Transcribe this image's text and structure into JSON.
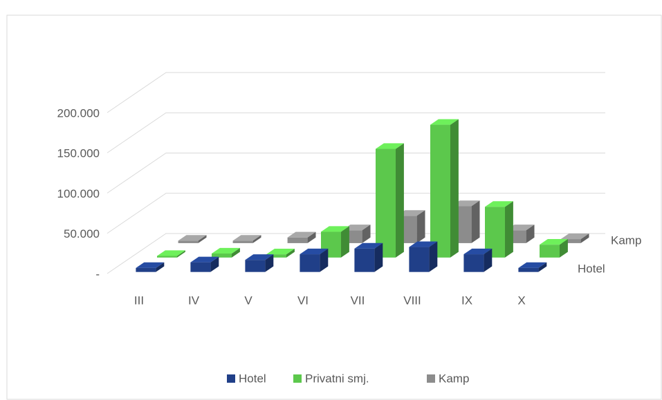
{
  "chart_data": {
    "type": "bar3d",
    "categories": [
      "III",
      "IV",
      "V",
      "VI",
      "VII",
      "VIII",
      "IX",
      "X"
    ],
    "series": [
      {
        "name": "Hotel",
        "color": "#203f88",
        "values": [
          5000,
          12000,
          15000,
          22000,
          29000,
          31000,
          22000,
          5000
        ]
      },
      {
        "name": "Privatni smj.",
        "color": "#5cc84c",
        "values": [
          2000,
          5000,
          4000,
          32000,
          135000,
          165000,
          63000,
          16000
        ]
      },
      {
        "name": "Kamp",
        "color": "#8c8c8c",
        "values": [
          3000,
          3000,
          7000,
          16000,
          34000,
          46000,
          16000,
          5000
        ]
      }
    ],
    "depth_labels": [
      "Hotel",
      null,
      "Kamp"
    ],
    "ylim": [
      0,
      200000
    ],
    "yticks": [
      {
        "value": 0,
        "label": "-"
      },
      {
        "value": 50000,
        "label": "50.000"
      },
      {
        "value": 100000,
        "label": "100.000"
      },
      {
        "value": 150000,
        "label": "150.000"
      },
      {
        "value": 200000,
        "label": "200.000"
      }
    ],
    "grid": true,
    "legend": "bottom"
  }
}
